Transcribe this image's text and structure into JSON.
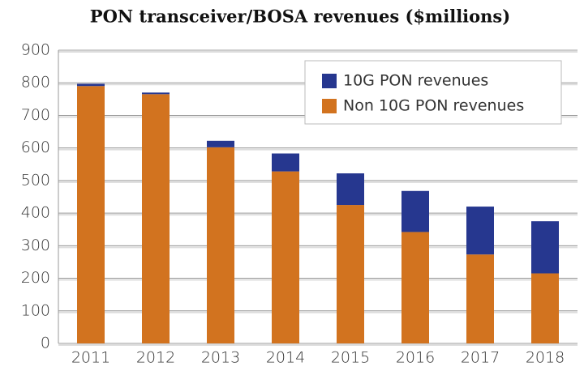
{
  "chart_data": {
    "type": "stacked-bar",
    "title": "PON transceiver/BOSA revenues ($millions)",
    "categories": [
      "2011",
      "2012",
      "2013",
      "2014",
      "2015",
      "2016",
      "2017",
      "2018"
    ],
    "series": [
      {
        "name": "10G PON revenues",
        "color": "#26378f",
        "values": [
          7,
          5,
          20,
          55,
          97,
          126,
          147,
          160
        ]
      },
      {
        "name": "Non 10G PON revenues",
        "color": "#d2731f",
        "values": [
          790,
          765,
          602,
          528,
          425,
          342,
          273,
          215
        ]
      }
    ],
    "ylim": [
      0,
      900
    ],
    "yticks": [
      0,
      100,
      200,
      300,
      400,
      500,
      600,
      700,
      800,
      900
    ],
    "grid": true
  }
}
